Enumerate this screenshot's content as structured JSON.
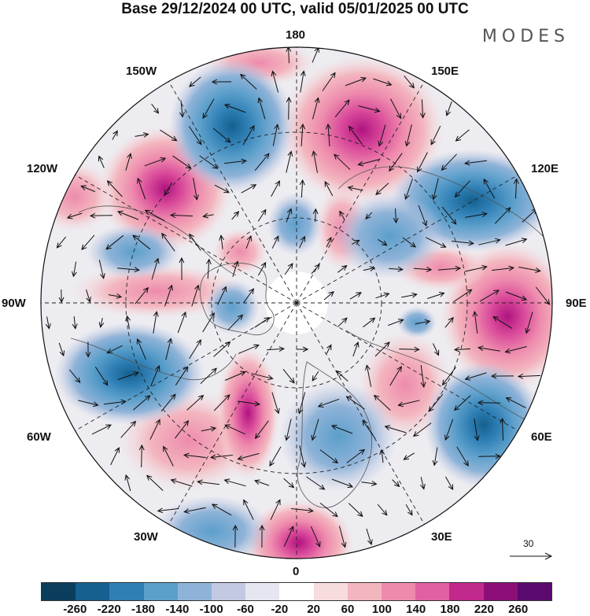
{
  "header": {
    "title": "Base 29/12/2024 00 UTC, valid 05/01/2025 00 UTC",
    "logo": "MODES"
  },
  "map_labels": {
    "top": "180",
    "top_right": "150E",
    "top_left": "150W",
    "right_upper": "120E",
    "left_upper": "120W",
    "right": "90E",
    "left": "90W",
    "right_lower": "60E",
    "left_lower": "60W",
    "bottom_right": "30E",
    "bottom_left": "30W",
    "bottom": "0"
  },
  "wind_reference": {
    "value": "30"
  },
  "colorbar": {
    "colors": [
      "#0b3d5c",
      "#15608f",
      "#2f7fb5",
      "#5b9fcb",
      "#8fb3d8",
      "#c4c9e3",
      "#e6e6f0",
      "#ffffff",
      "#f7dcdd",
      "#f3b6bf",
      "#ee8bad",
      "#e15fa3",
      "#c2298c",
      "#8c0f78",
      "#5a0a6e"
    ],
    "ticks": [
      "-260",
      "-220",
      "-180",
      "-140",
      "-100",
      "-60",
      "-20",
      "20",
      "60",
      "100",
      "140",
      "180",
      "220",
      "260"
    ]
  }
}
